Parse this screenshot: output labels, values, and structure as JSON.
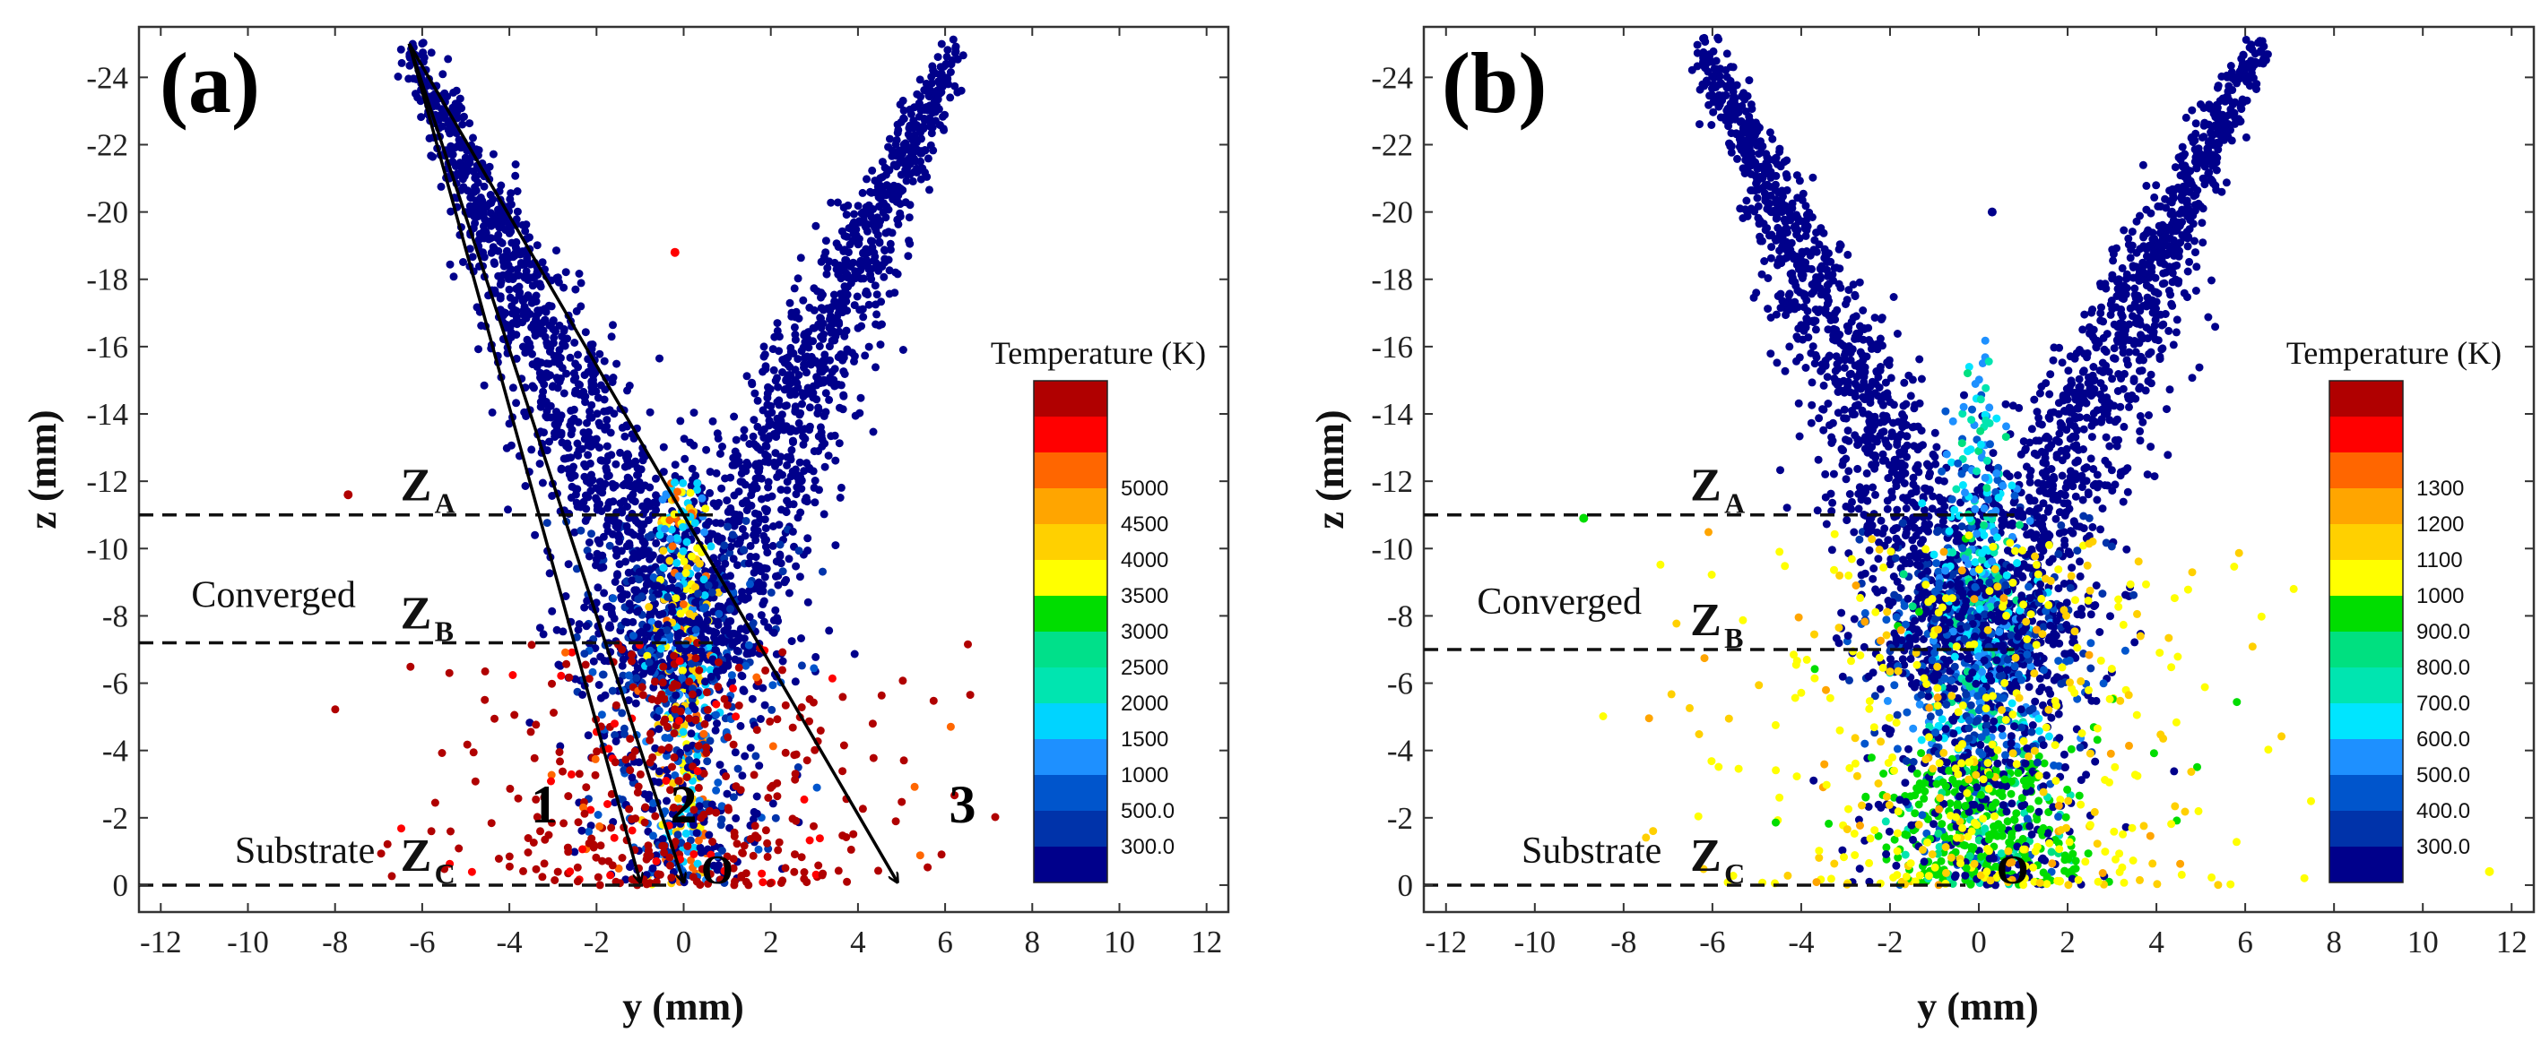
{
  "chart_data": [
    {
      "type": "scatter",
      "panel_label": "(a)",
      "xlabel": "y (mm)",
      "ylabel": "z (mm)",
      "xlim": [
        -12.5,
        12.5
      ],
      "ylim": [
        0.8,
        -25.5
      ],
      "x_ticks": [
        "-12",
        "-10",
        "-8",
        "-6",
        "-4",
        "-2",
        "0",
        "2",
        "4",
        "6",
        "8",
        "10",
        "12"
      ],
      "y_ticks": [
        "0",
        "-2",
        "-4",
        "-6",
        "-8",
        "-10",
        "-12",
        "-14",
        "-16",
        "-18",
        "-20",
        "-22",
        "-24"
      ],
      "color_bar": {
        "title": "Temperature (K)",
        "colors": [
          "#00008b",
          "#0033aa",
          "#0055cc",
          "#1e90ff",
          "#00d4ff",
          "#00e5b0",
          "#00e08a",
          "#00dd00",
          "#ffff00",
          "#ffd000",
          "#ffa500",
          "#ff6600",
          "#ff0000",
          "#b00000"
        ],
        "labels": [
          "300.0",
          "500.0",
          "1000",
          "1500",
          "2000",
          "2500",
          "3000",
          "3500",
          "4000",
          "4500",
          "5000"
        ]
      },
      "reference_lines": [
        {
          "name": "Z",
          "sub": "A",
          "z": -11.0,
          "note": ""
        },
        {
          "name": "Z",
          "sub": "B",
          "z": -7.2,
          "note": "Converged"
        },
        {
          "name": "Z",
          "sub": "C",
          "z": 0.0,
          "note": "Substrate"
        }
      ],
      "trajectories": [
        {
          "label": "1",
          "from": [
            -6.3,
            -25.0
          ],
          "to": [
            -1.0,
            -0.1
          ]
        },
        {
          "label": "2",
          "from": [
            -6.3,
            -25.0
          ],
          "to": [
            0.0,
            -0.1
          ]
        },
        {
          "label": "3",
          "from": [
            -6.3,
            -25.0
          ],
          "to": [
            4.9,
            -0.1
          ]
        }
      ],
      "origin_label": "O",
      "series": [
        {
          "name": "left jet particles",
          "description": "dense band from (-6.3,-25) converging to center near z=-8",
          "color": "#00008b",
          "approx_count": 1300
        },
        {
          "name": "right jet particles",
          "description": "dense band from (6.3,-25) converging to center near z=-8",
          "color": "#00008b",
          "approx_count": 1300
        },
        {
          "name": "central column",
          "description": "narrow column at y≈0, z from -12 to 0, mixed 1000-4000 K",
          "color": "#ffa500",
          "approx_count": 280
        },
        {
          "name": "hot scattered particles",
          "description": "spread y -10..8, z -7..0 at ~5000 K",
          "color": "#b00000",
          "approx_count": 380
        }
      ]
    },
    {
      "type": "scatter",
      "panel_label": "(b)",
      "xlabel": "y (mm)",
      "ylabel": "z (mm)",
      "xlim": [
        -12.5,
        12.5
      ],
      "ylim": [
        0.8,
        -25.5
      ],
      "x_ticks": [
        "-12",
        "-10",
        "-8",
        "-6",
        "-4",
        "-2",
        "0",
        "2",
        "4",
        "6",
        "8",
        "10",
        "12"
      ],
      "y_ticks": [
        "0",
        "-2",
        "-4",
        "-6",
        "-8",
        "-10",
        "-12",
        "-14",
        "-16",
        "-18",
        "-20",
        "-22",
        "-24"
      ],
      "color_bar": {
        "title": "Temperature (K)",
        "colors": [
          "#00008b",
          "#0033aa",
          "#0055cc",
          "#1e90ff",
          "#00e5ff",
          "#00e5b0",
          "#00e080",
          "#00dd00",
          "#ffff00",
          "#ffd000",
          "#ffa500",
          "#ff6600",
          "#ff0000",
          "#b00000"
        ],
        "labels": [
          "300.0",
          "400.0",
          "500.0",
          "600.0",
          "700.0",
          "800.0",
          "900.0",
          "1000",
          "1100",
          "1200",
          "1300"
        ]
      },
      "reference_lines": [
        {
          "name": "Z",
          "sub": "A",
          "z": -11.0,
          "note": ""
        },
        {
          "name": "Z",
          "sub": "B",
          "z": -7.0,
          "note": "Converged"
        },
        {
          "name": "Z",
          "sub": "C",
          "z": 0.0,
          "note": "Substrate"
        }
      ],
      "trajectories": [],
      "origin_label": "O",
      "series": [
        {
          "name": "left jet particles",
          "description": "dense band from (-6.3,-25) converging to center",
          "color": "#00008b",
          "approx_count": 1200
        },
        {
          "name": "right jet particles",
          "description": "dense band from (6.3,-25) converging to center",
          "color": "#00008b",
          "approx_count": 1200
        },
        {
          "name": "central column",
          "description": "column at y≈0, z -16..0, 400-900 K",
          "color": "#00dd00",
          "approx_count": 650
        },
        {
          "name": "warm scattered particles",
          "description": "spread y -11..11, z -10..0 at 1000-1200 K",
          "color": "#ffff00",
          "approx_count": 420
        }
      ]
    }
  ]
}
